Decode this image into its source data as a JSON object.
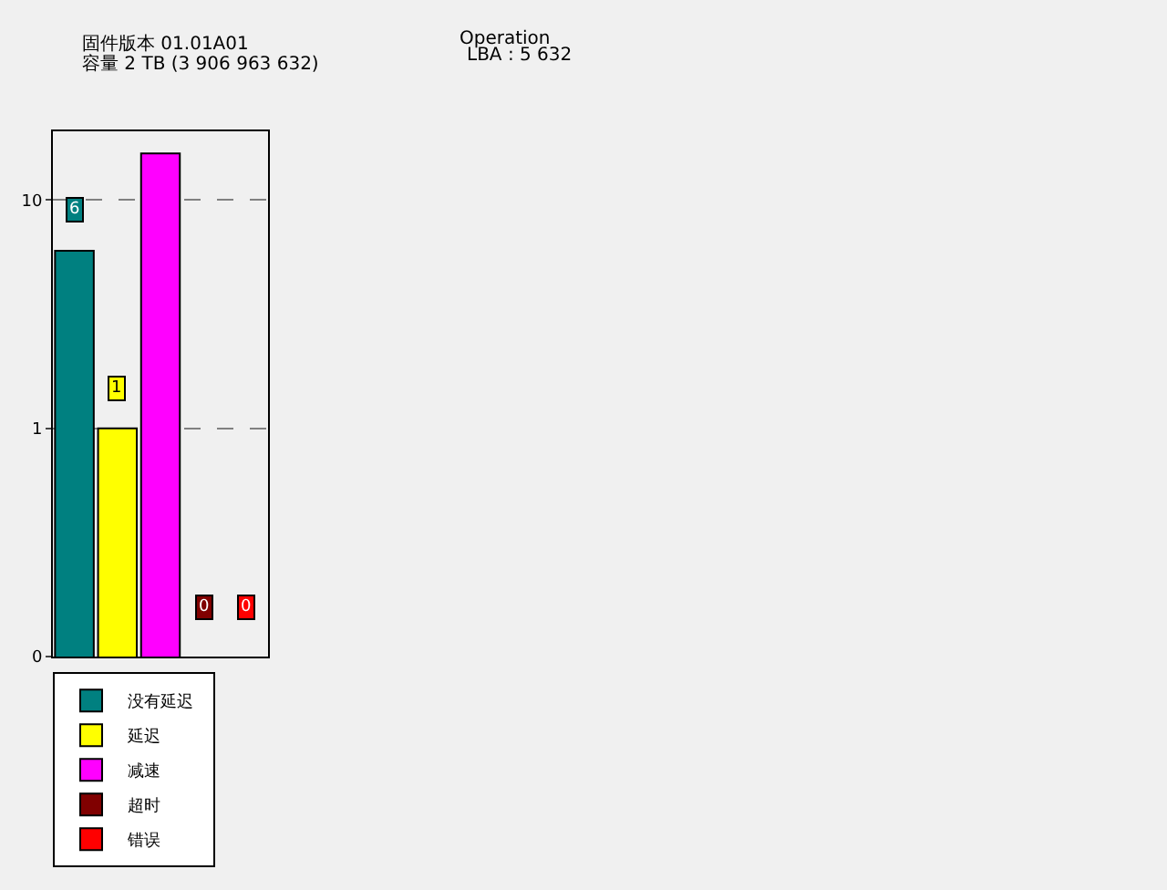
{
  "chart_data": {
    "type": "bar",
    "categories": [
      null,
      null,
      null,
      null,
      null
    ],
    "series": [
      {
        "name": "没有延迟",
        "color": "#008080",
        "values": [
          6,
          null,
          null,
          null,
          null
        ],
        "value_labels": [
          "6",
          null,
          null,
          null,
          null
        ]
      },
      {
        "name": "延迟",
        "color": "#ffff00",
        "values": [
          null,
          1,
          null,
          null,
          null
        ],
        "value_labels": [
          null,
          "1",
          null,
          null,
          null
        ]
      },
      {
        "name": "减速",
        "color": "#ff00ff",
        "values": [
          null,
          null,
          16,
          null,
          null
        ],
        "value_labels": [
          null,
          null,
          null,
          null,
          null
        ]
      },
      {
        "name": "超时",
        "color": "#800000",
        "values": [
          null,
          null,
          null,
          null,
          null
        ],
        "value_labels": [
          null,
          null,
          null,
          "0",
          null
        ]
      },
      {
        "name": "错误",
        "color": "#ff0000",
        "values": [
          null,
          null,
          null,
          null,
          null
        ],
        "value_labels": [
          null,
          null,
          null,
          null,
          "0"
        ]
      }
    ],
    "log": true,
    "ylim": [
      0.1,
      20
    ],
    "yticks": [
      {
        "value": 0.1,
        "label": "0"
      },
      1,
      10
    ],
    "grid": "y",
    "legend": "bottom left",
    "tick_labels": "y",
    "annotations": [
      "固件版本 01.01A01",
      "容量 2 TB (3 906 963 632)",
      "Operation",
      "LBA : 5 632"
    ]
  }
}
